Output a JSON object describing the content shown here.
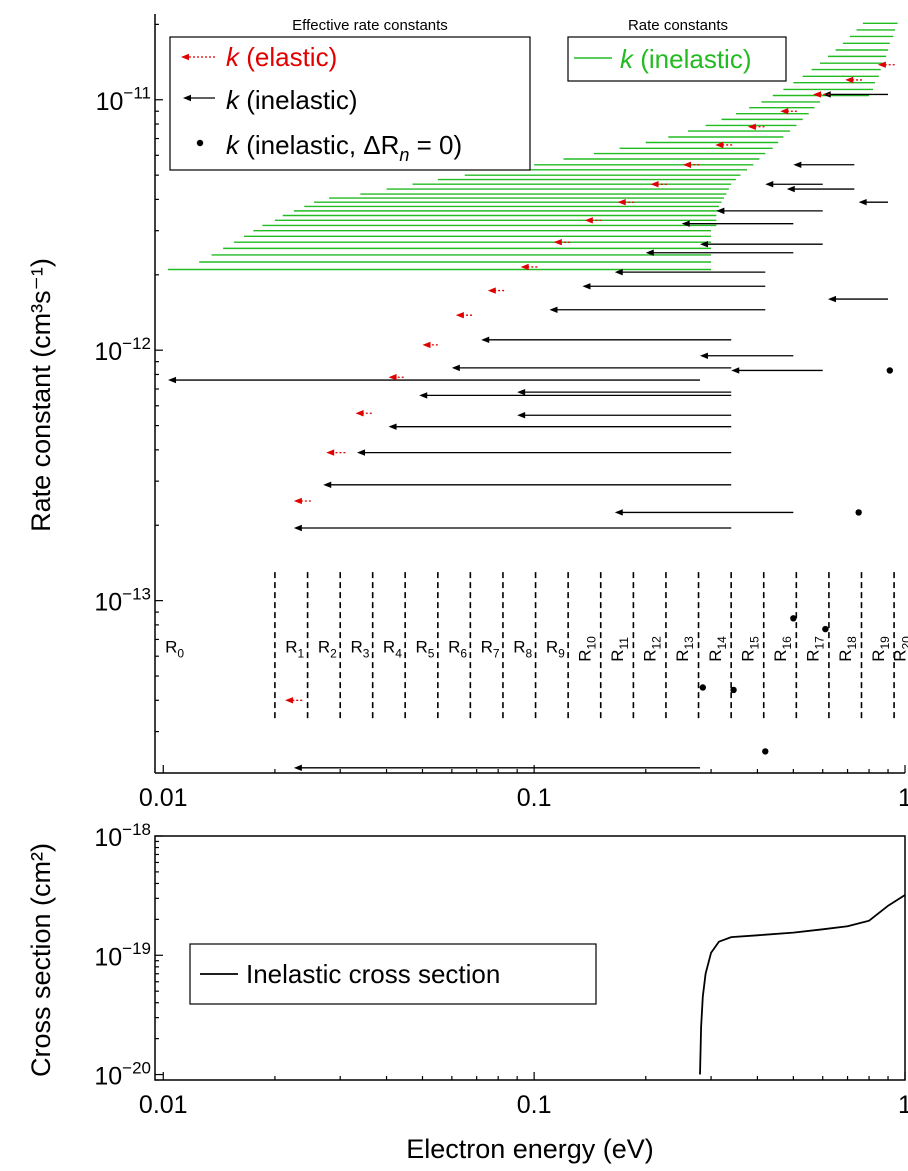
{
  "figure": {
    "xlabel": "Electron energy (eV)",
    "colors": {
      "elastic": "#e00000",
      "inelastic_effective": "#000000",
      "inelastic_band": "#22bb22",
      "axis": "#000000"
    }
  },
  "chart_data": [
    {
      "type": "scatter",
      "panel": "top",
      "xscale": "log",
      "yscale": "log",
      "xlim": [
        0.0095,
        1.0
      ],
      "ylim": [
        2.05e-14,
        2.2e-11
      ],
      "ylabel": "Rate constant (cm³s⁻¹)",
      "x_ticks": [
        {
          "value": 0.01,
          "label": "0.01"
        },
        {
          "value": 0.1,
          "label": "0.1"
        },
        {
          "value": 1,
          "label": "1"
        }
      ],
      "y_ticks": [
        {
          "value": 1e-13,
          "label": "10⁻¹³"
        },
        {
          "value": 1e-12,
          "label": "10⁻¹²"
        },
        {
          "value": 1e-11,
          "label": "10⁻¹¹"
        }
      ],
      "legend_titles": {
        "effective": "Effective rate constants",
        "rate": "Rate constants"
      },
      "legend_effective": [
        {
          "symbol": "elastic-arrow",
          "prefix": "k",
          "text": " (elastic)"
        },
        {
          "symbol": "inelastic-arrow",
          "prefix": "k",
          "text": " (inelastic)"
        },
        {
          "symbol": "dot",
          "prefix": "k",
          "text": " (inelastic, ΔR",
          "sub": "n",
          "suffix": " = 0)"
        }
      ],
      "legend_rate": {
        "prefix": "k",
        "text": " (inelastic)"
      },
      "region_labels": [
        "R0",
        "R1",
        "R2",
        "R3",
        "R4",
        "R5",
        "R6",
        "R7",
        "R8",
        "R9",
        "R10",
        "R11",
        "R12",
        "R13",
        "R14",
        "R15",
        "R16",
        "R17",
        "R18",
        "R19",
        "R20"
      ],
      "region_boundaries": [
        0.02,
        0.0245,
        0.03,
        0.0367,
        0.0449,
        0.055,
        0.0673,
        0.0824,
        0.1009,
        0.1235,
        0.1512,
        0.1852,
        0.2267,
        0.2775,
        0.3398,
        0.416,
        0.5093,
        0.6235,
        0.7633,
        0.9345
      ],
      "series": [
        {
          "name": "k (elastic)",
          "points": [
            {
              "x_from": 0.0237,
              "x_to": 0.0213,
              "y": 4e-14
            },
            {
              "x_from": 0.025,
              "x_to": 0.0225,
              "y": 2.5e-13
            },
            {
              "x_from": 0.031,
              "x_to": 0.0275,
              "y": 3.9e-13
            },
            {
              "x_from": 0.0365,
              "x_to": 0.033,
              "y": 5.6e-13
            },
            {
              "x_from": 0.0445,
              "x_to": 0.0405,
              "y": 7.8e-13
            },
            {
              "x_from": 0.055,
              "x_to": 0.05,
              "y": 1.05e-12
            },
            {
              "x_from": 0.068,
              "x_to": 0.0615,
              "y": 1.38e-12
            },
            {
              "x_from": 0.083,
              "x_to": 0.075,
              "y": 1.73e-12
            },
            {
              "x_from": 0.102,
              "x_to": 0.092,
              "y": 2.15e-12
            },
            {
              "x_from": 0.125,
              "x_to": 0.113,
              "y": 2.7e-12
            },
            {
              "x_from": 0.152,
              "x_to": 0.137,
              "y": 3.3e-12
            },
            {
              "x_from": 0.186,
              "x_to": 0.168,
              "y": 3.9e-12
            },
            {
              "x_from": 0.228,
              "x_to": 0.206,
              "y": 4.6e-12
            },
            {
              "x_from": 0.279,
              "x_to": 0.252,
              "y": 5.5e-12
            },
            {
              "x_from": 0.342,
              "x_to": 0.308,
              "y": 6.6e-12
            },
            {
              "x_from": 0.418,
              "x_to": 0.377,
              "y": 7.8e-12
            },
            {
              "x_from": 0.511,
              "x_to": 0.461,
              "y": 9e-12
            },
            {
              "x_from": 0.626,
              "x_to": 0.565,
              "y": 1.05e-11
            },
            {
              "x_from": 0.766,
              "x_to": 0.69,
              "y": 1.2e-11
            },
            {
              "x_from": 0.938,
              "x_to": 0.845,
              "y": 1.38e-11
            }
          ]
        },
        {
          "name": "k (inelastic)",
          "points": [
            {
              "x_from": 0.28,
              "x_to": 0.0225,
              "y": 2.15e-14
            },
            {
              "x_from": 0.34,
              "x_to": 0.0225,
              "y": 1.95e-13
            },
            {
              "x_from": 0.34,
              "x_to": 0.027,
              "y": 2.9e-13
            },
            {
              "x_from": 0.34,
              "x_to": 0.0333,
              "y": 3.9e-13
            },
            {
              "x_from": 0.34,
              "x_to": 0.0405,
              "y": 4.95e-13
            },
            {
              "x_from": 0.34,
              "x_to": 0.049,
              "y": 6.6e-13
            },
            {
              "x_from": 0.28,
              "x_to": 0.0103,
              "y": 7.6e-13
            },
            {
              "x_from": 0.34,
              "x_to": 0.06,
              "y": 8.5e-13
            },
            {
              "x_from": 0.34,
              "x_to": 0.09,
              "y": 6.8e-13
            },
            {
              "x_from": 0.34,
              "x_to": 0.09,
              "y": 5.5e-13
            },
            {
              "x_from": 0.34,
              "x_to": 0.072,
              "y": 1.1e-12
            },
            {
              "x_from": 0.5,
              "x_to": 0.28,
              "y": 9.5e-13
            },
            {
              "x_from": 0.6,
              "x_to": 0.34,
              "y": 8.3e-13
            },
            {
              "x_from": 0.42,
              "x_to": 0.11,
              "y": 1.45e-12
            },
            {
              "x_from": 0.42,
              "x_to": 0.135,
              "y": 1.8e-12
            },
            {
              "x_from": 0.42,
              "x_to": 0.165,
              "y": 2.05e-12
            },
            {
              "x_from": 0.5,
              "x_to": 0.2,
              "y": 2.45e-12
            },
            {
              "x_from": 0.6,
              "x_to": 0.28,
              "y": 2.65e-12
            },
            {
              "x_from": 0.5,
              "x_to": 0.25,
              "y": 3.2e-12
            },
            {
              "x_from": 0.6,
              "x_to": 0.31,
              "y": 3.6e-12
            },
            {
              "x_from": 0.6,
              "x_to": 0.42,
              "y": 4.6e-12
            },
            {
              "x_from": 0.73,
              "x_to": 0.48,
              "y": 4.4e-12
            },
            {
              "x_from": 0.9,
              "x_to": 0.75,
              "y": 3.9e-12
            },
            {
              "x_from": 0.73,
              "x_to": 0.5,
              "y": 5.5e-12
            },
            {
              "x_from": 0.9,
              "x_to": 0.6,
              "y": 1.05e-11
            },
            {
              "x_from": 0.9,
              "x_to": 0.62,
              "y": 1.6e-12
            },
            {
              "x_from": 0.5,
              "x_to": 0.165,
              "y": 2.25e-13
            }
          ]
        },
        {
          "name": "k (inelastic, ΔRn = 0)",
          "points": [
            {
              "x": 0.285,
              "y": 4.5e-14
            },
            {
              "x": 0.345,
              "y": 4.4e-14
            },
            {
              "x": 0.42,
              "y": 2.5e-14
            },
            {
              "x": 0.5,
              "y": 8.5e-14
            },
            {
              "x": 0.61,
              "y": 7.7e-14
            },
            {
              "x": 0.75,
              "y": 2.25e-13
            },
            {
              "x": 0.91,
              "y": 8.3e-13
            }
          ]
        },
        {
          "name": "k (inelastic)",
          "style": "band",
          "bands": [
            {
              "x_from": 0.0103,
              "x_to": 0.3,
              "y": 2.1e-12
            },
            {
              "x_from": 0.0125,
              "x_to": 0.3,
              "y": 2.25e-12
            },
            {
              "x_from": 0.0135,
              "x_to": 0.3,
              "y": 2.4e-12
            },
            {
              "x_from": 0.0145,
              "x_to": 0.3,
              "y": 2.55e-12
            },
            {
              "x_from": 0.0155,
              "x_to": 0.3,
              "y": 2.7e-12
            },
            {
              "x_from": 0.0165,
              "x_to": 0.3,
              "y": 2.85e-12
            },
            {
              "x_from": 0.0175,
              "x_to": 0.3,
              "y": 3e-12
            },
            {
              "x_from": 0.0185,
              "x_to": 0.31,
              "y": 3.15e-12
            },
            {
              "x_from": 0.02,
              "x_to": 0.31,
              "y": 3.3e-12
            },
            {
              "x_from": 0.021,
              "x_to": 0.31,
              "y": 3.45e-12
            },
            {
              "x_from": 0.0225,
              "x_to": 0.315,
              "y": 3.6e-12
            },
            {
              "x_from": 0.024,
              "x_to": 0.315,
              "y": 3.75e-12
            },
            {
              "x_from": 0.0255,
              "x_to": 0.32,
              "y": 3.9e-12
            },
            {
              "x_from": 0.028,
              "x_to": 0.325,
              "y": 4.05e-12
            },
            {
              "x_from": 0.034,
              "x_to": 0.33,
              "y": 4.2e-12
            },
            {
              "x_from": 0.04,
              "x_to": 0.335,
              "y": 4.4e-12
            },
            {
              "x_from": 0.047,
              "x_to": 0.34,
              "y": 4.6e-12
            },
            {
              "x_from": 0.055,
              "x_to": 0.35,
              "y": 4.8e-12
            },
            {
              "x_from": 0.065,
              "x_to": 0.36,
              "y": 5e-12
            },
            {
              "x_from": 0.08,
              "x_to": 0.375,
              "y": 5.25e-12
            },
            {
              "x_from": 0.1,
              "x_to": 0.39,
              "y": 5.5e-12
            },
            {
              "x_from": 0.12,
              "x_to": 0.405,
              "y": 5.8e-12
            },
            {
              "x_from": 0.145,
              "x_to": 0.42,
              "y": 6.1e-12
            },
            {
              "x_from": 0.17,
              "x_to": 0.44,
              "y": 6.4e-12
            },
            {
              "x_from": 0.2,
              "x_to": 0.455,
              "y": 6.75e-12
            },
            {
              "x_from": 0.23,
              "x_to": 0.47,
              "y": 7.1e-12
            },
            {
              "x_from": 0.26,
              "x_to": 0.49,
              "y": 7.5e-12
            },
            {
              "x_from": 0.29,
              "x_to": 0.51,
              "y": 7.9e-12
            },
            {
              "x_from": 0.32,
              "x_to": 0.53,
              "y": 8.35e-12
            },
            {
              "x_from": 0.35,
              "x_to": 0.55,
              "y": 8.8e-12
            },
            {
              "x_from": 0.38,
              "x_to": 0.57,
              "y": 9.3e-12
            },
            {
              "x_from": 0.41,
              "x_to": 0.59,
              "y": 9.8e-12
            },
            {
              "x_from": 0.44,
              "x_to": 0.8,
              "y": 1.04e-11
            },
            {
              "x_from": 0.47,
              "x_to": 0.82,
              "y": 1.1e-11
            },
            {
              "x_from": 0.5,
              "x_to": 0.83,
              "y": 1.17e-11
            },
            {
              "x_from": 0.53,
              "x_to": 0.85,
              "y": 1.24e-11
            },
            {
              "x_from": 0.56,
              "x_to": 0.86,
              "y": 1.32e-11
            },
            {
              "x_from": 0.59,
              "x_to": 0.87,
              "y": 1.4e-11
            },
            {
              "x_from": 0.62,
              "x_to": 0.89,
              "y": 1.49e-11
            },
            {
              "x_from": 0.65,
              "x_to": 0.9,
              "y": 1.58e-11
            },
            {
              "x_from": 0.68,
              "x_to": 0.91,
              "y": 1.68e-11
            },
            {
              "x_from": 0.71,
              "x_to": 0.93,
              "y": 1.79e-11
            },
            {
              "x_from": 0.74,
              "x_to": 0.94,
              "y": 1.9e-11
            },
            {
              "x_from": 0.77,
              "x_to": 0.955,
              "y": 2.02e-11
            }
          ]
        }
      ]
    },
    {
      "type": "line",
      "panel": "bottom",
      "xscale": "log",
      "yscale": "log",
      "xlim": [
        0.0095,
        1.0
      ],
      "ylim": [
        9e-21,
        1e-18
      ],
      "ylabel": "Cross section (cm²)",
      "x_ticks": [
        {
          "value": 0.01,
          "label": "0.01"
        },
        {
          "value": 0.1,
          "label": "0.1"
        },
        {
          "value": 1,
          "label": "1"
        }
      ],
      "y_ticks": [
        {
          "value": 1e-20,
          "label": "10⁻²⁰"
        },
        {
          "value": 1e-19,
          "label": "10⁻¹⁹"
        },
        {
          "value": 1e-18,
          "label": "10⁻¹⁸"
        }
      ],
      "legend": "Inelastic cross section",
      "series": [
        {
          "name": "Inelastic cross section",
          "x": [
            0.28,
            0.282,
            0.285,
            0.29,
            0.3,
            0.315,
            0.34,
            0.4,
            0.5,
            0.6,
            0.7,
            0.8,
            0.9,
            1.0
          ],
          "y": [
            1e-20,
            2.5e-20,
            4.5e-20,
            7e-20,
            1.05e-19,
            1.3e-19,
            1.42e-19,
            1.47e-19,
            1.55e-19,
            1.65e-19,
            1.75e-19,
            1.95e-19,
            2.6e-19,
            3.2e-19
          ]
        }
      ]
    }
  ]
}
